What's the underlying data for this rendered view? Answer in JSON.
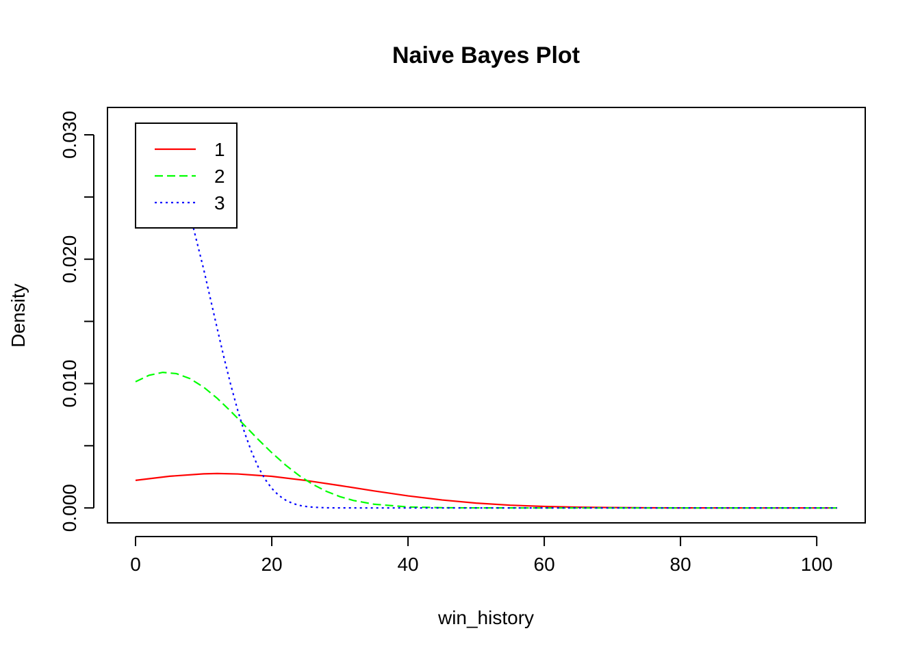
{
  "chart_data": {
    "type": "line",
    "title": "Naive Bayes Plot",
    "xlabel": "win_history",
    "ylabel": "Density",
    "xlim": [
      -4.12,
      107.12
    ],
    "ylim": [
      -0.0012,
      0.0322
    ],
    "x_ticks": [
      0,
      20,
      40,
      60,
      80,
      100
    ],
    "x_tick_labels": [
      "0",
      "20",
      "40",
      "60",
      "80",
      "100"
    ],
    "y_ticks": [
      0.0,
      0.005,
      0.01,
      0.015,
      0.02,
      0.025,
      0.03
    ],
    "y_tick_labels": [
      "0.000",
      "",
      "0.010",
      "",
      "0.020",
      "",
      "0.030"
    ],
    "grid": false,
    "legend_position": "top-left",
    "series": [
      {
        "name": "1",
        "color": "#ff0000",
        "dash": "solid",
        "x": [
          0,
          5,
          10,
          12,
          15,
          20,
          25,
          30,
          35,
          40,
          45,
          50,
          55,
          60,
          65,
          70,
          75,
          80,
          90,
          103
        ],
        "y": [
          0.00222,
          0.00255,
          0.00274,
          0.00277,
          0.00273,
          0.00254,
          0.00221,
          0.0018,
          0.00137,
          0.00097,
          0.00064,
          0.00039,
          0.00022,
          0.00012,
          6e-05,
          3e-05,
          1e-05,
          5e-06,
          1e-06,
          0.0
        ]
      },
      {
        "name": "2",
        "color": "#00ff00",
        "dash": "dashed",
        "x": [
          0,
          2,
          4,
          6,
          8,
          10,
          12,
          14,
          16,
          18,
          20,
          22,
          24,
          26,
          28,
          30,
          32,
          35,
          40,
          45,
          50,
          60,
          103
        ],
        "y": [
          0.01015,
          0.01067,
          0.0109,
          0.0108,
          0.0104,
          0.00971,
          0.00881,
          0.00776,
          0.00664,
          0.00551,
          0.00444,
          0.00346,
          0.00261,
          0.0019,
          0.00134,
          0.00091,
          0.0006,
          0.0003,
          8e-05,
          2e-05,
          4e-06,
          0.0,
          0.0
        ]
      },
      {
        "name": "3",
        "color": "#0000ff",
        "dash": "dotted",
        "x": [
          8.5,
          10,
          11,
          12,
          13,
          14,
          15,
          16,
          17,
          18,
          19,
          20,
          21,
          22,
          23,
          24,
          25,
          26,
          28,
          30,
          35,
          103
        ],
        "y": [
          0.0225,
          0.0192,
          0.0168,
          0.0144,
          0.01205,
          0.00985,
          0.00785,
          0.00607,
          0.00456,
          0.0033,
          0.00232,
          0.00157,
          0.00102,
          0.00064,
          0.00038,
          0.00021,
          0.00012,
          6e-05,
          1e-05,
          3e-06,
          0.0,
          0.0
        ]
      }
    ]
  }
}
